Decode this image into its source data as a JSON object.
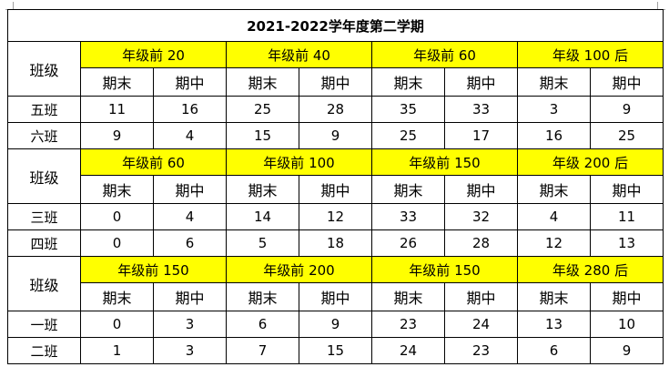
{
  "title": "2021-2022学年度第二学期",
  "class_header": "班级",
  "sections": [
    {
      "groups": [
        "年级前 20",
        "年级前 40",
        "年级前 60",
        "年级 100 后"
      ],
      "subheaders": [
        "期末",
        "期中",
        "期末",
        "期中",
        "期末",
        "期中",
        "期末",
        "期中"
      ],
      "rows": [
        {
          "class": "五班",
          "values": [
            "11",
            "16",
            "25",
            "28",
            "35",
            "33",
            "3",
            "9"
          ]
        },
        {
          "class": "六班",
          "values": [
            "9",
            "4",
            "15",
            "9",
            "25",
            "17",
            "16",
            "25"
          ]
        }
      ]
    },
    {
      "groups": [
        "年级前 60",
        "年级前 100",
        "年级前 150",
        "年级 200 后"
      ],
      "subheaders": [
        "期末",
        "期中",
        "期末",
        "期中",
        "期末",
        "期中",
        "期末",
        "期中"
      ],
      "rows": [
        {
          "class": "三班",
          "values": [
            "0",
            "4",
            "14",
            "12",
            "33",
            "32",
            "4",
            "11"
          ]
        },
        {
          "class": "四班",
          "values": [
            "0",
            "6",
            "5",
            "18",
            "26",
            "28",
            "12",
            "13"
          ]
        }
      ]
    },
    {
      "groups": [
        "年级前 150",
        "年级前 200",
        "年级前 150",
        "年级 280 后"
      ],
      "subheaders": [
        "期末",
        "期中",
        "期末",
        "期中",
        "期末",
        "期中",
        "期末",
        "期中"
      ],
      "rows": [
        {
          "class": "一班",
          "values": [
            "0",
            "3",
            "6",
            "9",
            "23",
            "24",
            "13",
            "10"
          ]
        },
        {
          "class": "二班",
          "values": [
            "1",
            "3",
            "7",
            "15",
            "24",
            "23",
            "6",
            "9"
          ]
        }
      ]
    }
  ]
}
